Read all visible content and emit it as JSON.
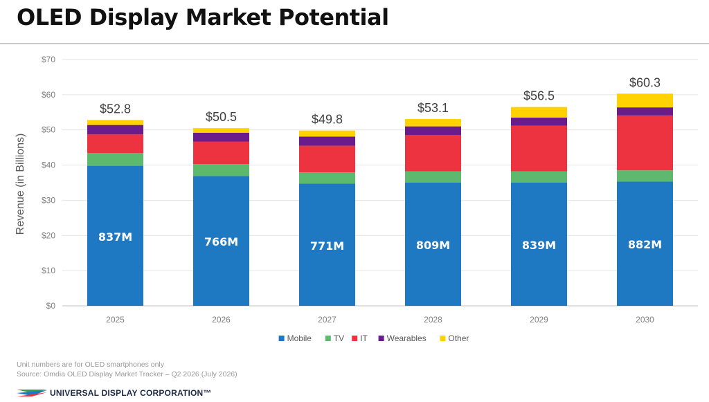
{
  "page": {
    "title": "OLED Display Market Potential",
    "note": "Unit numbers are for OLED smartphones only",
    "source": "Source:  Omdia OLED Display Market Tracker – Q2 2026 (July 2026)",
    "brand": "UNIVERSAL DISPLAY CORPORATION™"
  },
  "chart_data": {
    "type": "bar",
    "stacked": true,
    "ylabel": "Revenue (in Billions)",
    "ylim": [
      0,
      70
    ],
    "yticks": [
      0,
      10,
      20,
      30,
      40,
      50,
      60,
      70
    ],
    "ytick_labels": [
      "$0",
      "$10",
      "$20",
      "$30",
      "$40",
      "$50",
      "$60",
      "$70"
    ],
    "grid": true,
    "legend_position": "bottom",
    "categories": [
      "2025",
      "2026",
      "2027",
      "2028",
      "2029",
      "2030"
    ],
    "totals": [
      "$52.8",
      "$50.5",
      "$49.8",
      "$53.1",
      "$56.5",
      "$60.3"
    ],
    "unit_labels": [
      "837M",
      "766M",
      "771M",
      "809M",
      "839M",
      "882M"
    ],
    "series": [
      {
        "name": "Mobile",
        "color": "#1e78c2",
        "values": [
          39.8,
          36.9,
          34.7,
          35.0,
          35.0,
          35.3
        ]
      },
      {
        "name": "TV",
        "color": "#5cb96e",
        "values": [
          3.6,
          3.4,
          3.2,
          3.2,
          3.2,
          3.2
        ]
      },
      {
        "name": "IT",
        "color": "#ee3340",
        "values": [
          5.3,
          6.4,
          7.6,
          10.3,
          13.0,
          15.6
        ]
      },
      {
        "name": "Wearables",
        "color": "#6a1b8c",
        "values": [
          2.7,
          2.5,
          2.6,
          2.5,
          2.3,
          2.3
        ]
      },
      {
        "name": "Other",
        "color": "#ffd200",
        "values": [
          1.4,
          1.3,
          1.7,
          2.1,
          3.0,
          3.9
        ]
      }
    ]
  }
}
